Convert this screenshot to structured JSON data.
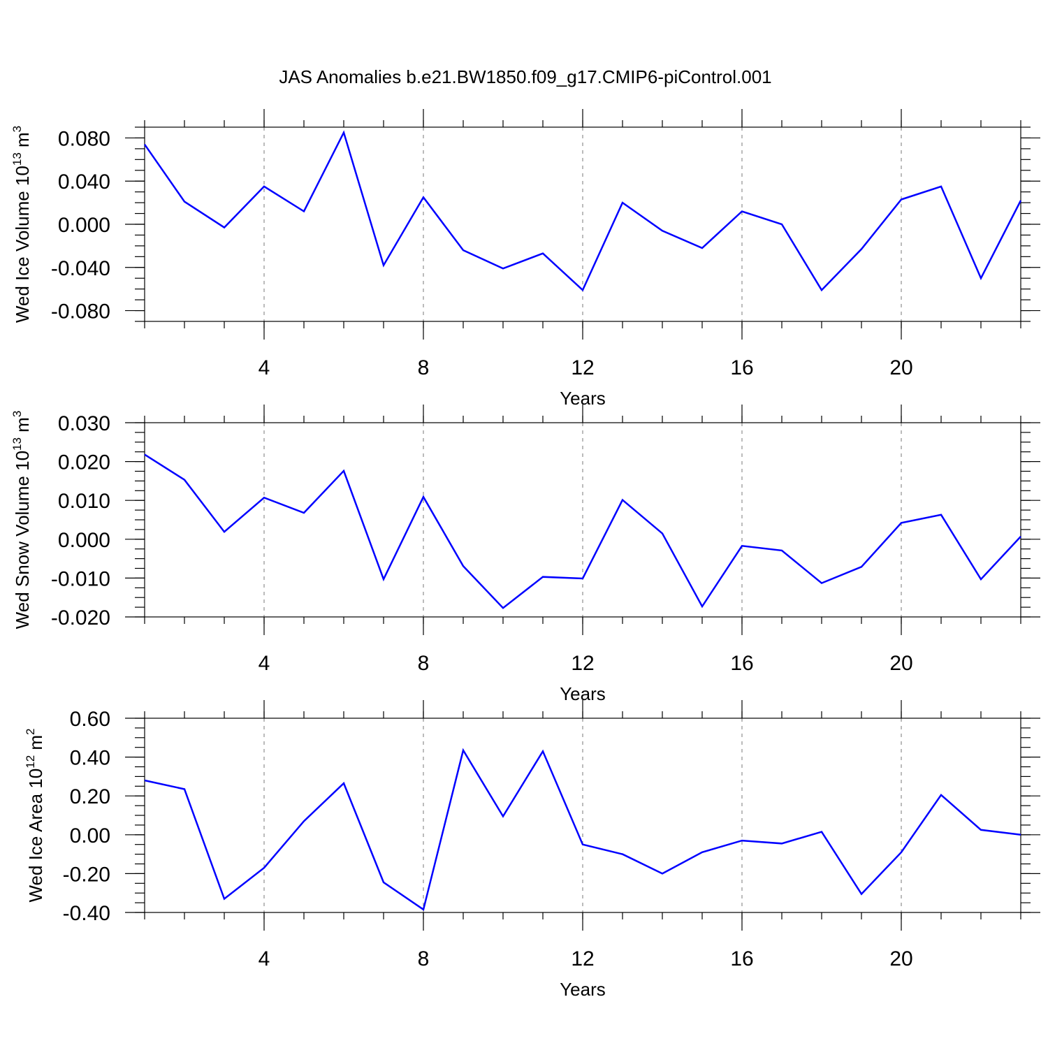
{
  "chart_data": {
    "title": "JAS Anomalies b.e21.BW1850.f09_g17.CMIP6-piControl.001",
    "panels": [
      {
        "type": "line",
        "ylabel": "Wed Ice Volume 10",
        "ylabel_exp": "13",
        "ylabel_unit": " m",
        "ylabel_unit_exp": "3",
        "xlabel": "Years",
        "xlim": [
          1,
          23
        ],
        "ylim": [
          -0.09,
          0.09
        ],
        "yticks": [
          -0.08,
          -0.04,
          0.0,
          0.04,
          0.08
        ],
        "ytick_labels": [
          "-0.080",
          "-0.040",
          "0.000",
          "0.040",
          "0.080"
        ],
        "xticks": [
          4,
          8,
          12,
          16,
          20
        ],
        "xtick_labels": [
          "4",
          "8",
          "12",
          "16",
          "20"
        ],
        "grid_x": true,
        "series": [
          {
            "name": "Wed Ice Volume",
            "color": "#0000ff",
            "x": [
              1,
              2,
              3,
              4,
              5,
              6,
              7,
              8,
              9,
              10,
              11,
              12,
              13,
              14,
              15,
              16,
              17,
              18,
              19,
              20,
              21,
              22,
              23
            ],
            "values": [
              0.074,
              0.021,
              -0.003,
              0.035,
              0.012,
              0.085,
              -0.038,
              0.025,
              -0.024,
              -0.041,
              -0.027,
              -0.061,
              0.02,
              -0.006,
              -0.022,
              0.012,
              0.0,
              -0.061,
              -0.023,
              0.023,
              0.035,
              -0.05,
              0.022
            ]
          }
        ]
      },
      {
        "type": "line",
        "ylabel": "Wed Snow Volume 10",
        "ylabel_exp": "13",
        "ylabel_unit": " m",
        "ylabel_unit_exp": "3",
        "xlabel": "Years",
        "xlim": [
          1,
          23
        ],
        "ylim": [
          -0.02,
          0.03
        ],
        "yticks": [
          -0.02,
          -0.01,
          0.0,
          0.01,
          0.02,
          0.03
        ],
        "ytick_labels": [
          "-0.020",
          "-0.010",
          "0.000",
          "0.010",
          "0.020",
          "0.030"
        ],
        "xticks": [
          4,
          8,
          12,
          16,
          20
        ],
        "xtick_labels": [
          "4",
          "8",
          "12",
          "16",
          "20"
        ],
        "grid_x": true,
        "series": [
          {
            "name": "Wed Snow Volume",
            "color": "#0000ff",
            "x": [
              1,
              2,
              3,
              4,
              5,
              6,
              7,
              8,
              9,
              10,
              11,
              12,
              13,
              14,
              15,
              16,
              17,
              18,
              19,
              20,
              21,
              22,
              23
            ],
            "values": [
              0.0218,
              0.0153,
              0.0019,
              0.0107,
              0.0068,
              0.0176,
              -0.0103,
              0.0109,
              -0.0069,
              -0.0177,
              -0.0097,
              -0.0101,
              0.0101,
              0.0015,
              -0.0173,
              -0.0017,
              -0.0029,
              -0.0113,
              -0.0071,
              0.0042,
              0.0063,
              -0.0103,
              0.0007
            ]
          }
        ]
      },
      {
        "type": "line",
        "ylabel": "Wed Ice Area 10",
        "ylabel_exp": "12",
        "ylabel_unit": " m",
        "ylabel_unit_exp": "2",
        "xlabel": "Years",
        "xlim": [
          1,
          23
        ],
        "ylim": [
          -0.4,
          0.6
        ],
        "yticks": [
          -0.4,
          -0.2,
          0.0,
          0.2,
          0.4,
          0.6
        ],
        "ytick_labels": [
          "-0.40",
          "-0.20",
          "0.00",
          "0.20",
          "0.40",
          "0.60"
        ],
        "xticks": [
          4,
          8,
          12,
          16,
          20
        ],
        "xtick_labels": [
          "4",
          "8",
          "12",
          "16",
          "20"
        ],
        "grid_x": true,
        "series": [
          {
            "name": "Wed Ice Area",
            "color": "#0000ff",
            "x": [
              1,
              2,
              3,
              4,
              5,
              6,
              7,
              8,
              9,
              10,
              11,
              12,
              13,
              14,
              15,
              16,
              17,
              18,
              19,
              20,
              21,
              22,
              23
            ],
            "values": [
              0.28,
              0.235,
              -0.33,
              -0.17,
              0.07,
              0.265,
              -0.245,
              -0.385,
              0.435,
              0.095,
              0.43,
              -0.05,
              -0.1,
              -0.2,
              -0.09,
              -0.03,
              -0.045,
              0.015,
              -0.305,
              -0.09,
              0.205,
              0.025,
              0.0
            ]
          }
        ]
      }
    ]
  }
}
